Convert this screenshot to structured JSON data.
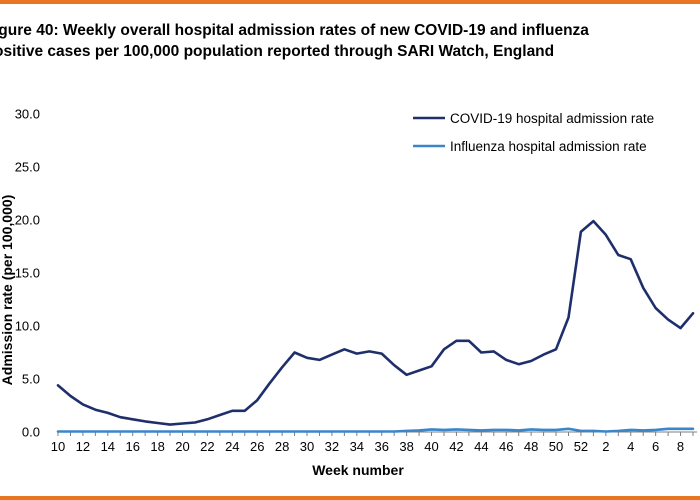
{
  "title": {
    "line1": "igure 40: Weekly overall hospital admission rates of new COVID-19 and influenza",
    "line2": "ositive cases per 100,000 population reported through SARI Watch, England"
  },
  "colors": {
    "covid": "#1f2f6b",
    "influenza": "#3a86c8",
    "accent_rule": "#e87722",
    "axis": "#7f7f7f"
  },
  "chart_data": {
    "type": "line",
    "title": "Weekly overall hospital admission rates of new COVID-19 and influenza positive cases per 100,000 population reported through SARI Watch, England",
    "xlabel": "Week number",
    "ylabel": "Admission rate (per 100,000)",
    "ylim": [
      0,
      30
    ],
    "yticks": [
      "0.0",
      "5.0",
      "10.0",
      "15.0",
      "20.0",
      "25.0",
      "30.0"
    ],
    "x": [
      "10",
      "11",
      "12",
      "13",
      "14",
      "15",
      "16",
      "17",
      "18",
      "19",
      "20",
      "21",
      "22",
      "23",
      "24",
      "25",
      "26",
      "27",
      "28",
      "29",
      "30",
      "31",
      "32",
      "33",
      "34",
      "35",
      "36",
      "37",
      "38",
      "39",
      "40",
      "41",
      "42",
      "43",
      "44",
      "45",
      "46",
      "47",
      "48",
      "49",
      "50",
      "51",
      "52",
      "1",
      "2",
      "3",
      "4",
      "5",
      "6",
      "7",
      "8",
      "9"
    ],
    "x_tick_labels": [
      "10",
      "12",
      "14",
      "16",
      "18",
      "20",
      "22",
      "24",
      "26",
      "28",
      "30",
      "32",
      "34",
      "36",
      "38",
      "40",
      "42",
      "44",
      "46",
      "48",
      "50",
      "52",
      "2",
      "4",
      "6",
      "8"
    ],
    "legend_position": "top-right",
    "series": [
      {
        "name": "COVID-19 hospital admission rate",
        "values": [
          4.4,
          3.4,
          2.6,
          2.1,
          1.8,
          1.4,
          1.2,
          1.0,
          0.85,
          0.7,
          0.8,
          0.9,
          1.2,
          1.6,
          2.0,
          2.0,
          3.0,
          4.6,
          6.1,
          7.5,
          7.0,
          6.8,
          7.3,
          7.8,
          7.4,
          7.6,
          7.4,
          6.3,
          5.4,
          5.8,
          6.2,
          7.8,
          8.6,
          8.6,
          7.5,
          7.6,
          6.8,
          6.4,
          6.7,
          7.3,
          7.8,
          10.8,
          18.9,
          19.9,
          18.6,
          16.7,
          16.3,
          13.6,
          11.7,
          10.6,
          9.8,
          11.2
        ]
      },
      {
        "name": "Influenza hospital admission rate",
        "values": [
          0.05,
          0.05,
          0.05,
          0.05,
          0.05,
          0.05,
          0.05,
          0.05,
          0.05,
          0.05,
          0.05,
          0.05,
          0.05,
          0.05,
          0.05,
          0.05,
          0.05,
          0.05,
          0.05,
          0.05,
          0.05,
          0.05,
          0.05,
          0.05,
          0.05,
          0.05,
          0.05,
          0.05,
          0.1,
          0.15,
          0.25,
          0.2,
          0.25,
          0.2,
          0.15,
          0.2,
          0.2,
          0.15,
          0.25,
          0.2,
          0.2,
          0.3,
          0.1,
          0.1,
          0.05,
          0.1,
          0.2,
          0.15,
          0.2,
          0.3,
          0.3,
          0.3
        ]
      }
    ]
  }
}
